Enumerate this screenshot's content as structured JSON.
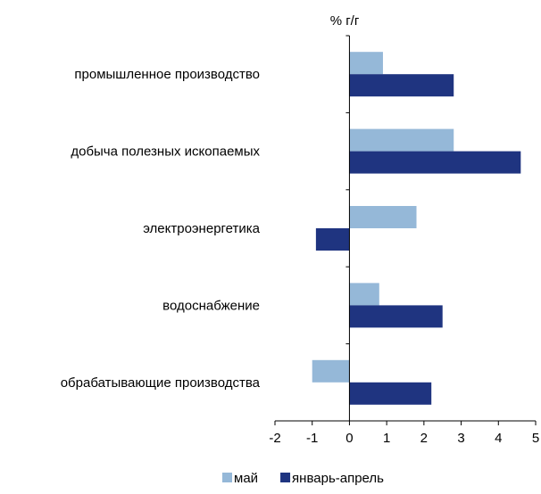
{
  "chart_data": {
    "type": "bar",
    "orientation": "horizontal",
    "unit_label": "% г/г",
    "categories": [
      "промышленное производство",
      "добыча полезных ископаемых",
      "электроэнергетика",
      "водоснабжение",
      "обрабатывающие производства"
    ],
    "series": [
      {
        "name": "май",
        "color": "#95B8D8",
        "values": [
          0.9,
          2.8,
          1.8,
          0.8,
          -1.0
        ]
      },
      {
        "name": "январь-апрель",
        "color": "#1F3480",
        "values": [
          2.8,
          4.6,
          -0.9,
          2.5,
          2.2
        ]
      }
    ],
    "xlim": [
      -2,
      5
    ],
    "xticks": [
      "-2",
      "-1",
      "0",
      "1",
      "2",
      "3",
      "4",
      "5"
    ],
    "grid": false,
    "legend_position": "bottom"
  }
}
